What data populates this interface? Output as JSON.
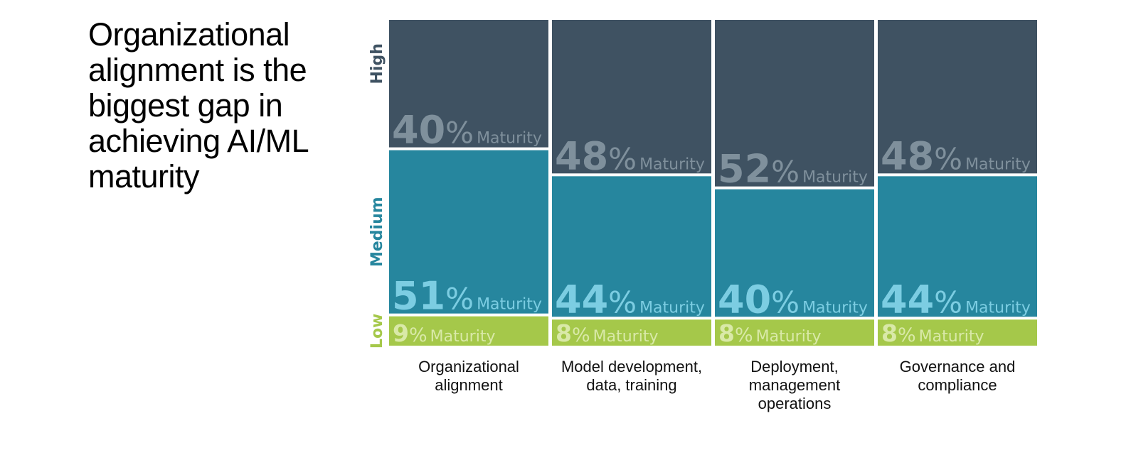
{
  "title": "Organizational alignment is the biggest gap in achieving AI/ML maturity",
  "colors": {
    "high": "#3f5262",
    "high_text": "#7f909c",
    "medium": "#26869e",
    "medium_text": "#7ccde2",
    "low": "#a5c84a",
    "low_text": "#d9e9a8",
    "label_high": "#3f5262",
    "label_medium": "#26869e",
    "label_low": "#a5c84a"
  },
  "chart_data": {
    "type": "bar",
    "stacked": true,
    "percent_symbol": "%",
    "value_suffix": "Maturity",
    "levels": [
      "Low",
      "Medium",
      "High"
    ],
    "categories": [
      [
        "Organizational",
        "alignment"
      ],
      [
        "Model development,",
        "data, training"
      ],
      [
        "Deployment,",
        "management",
        "operations"
      ],
      [
        "Governance and",
        "compliance"
      ]
    ],
    "series": [
      {
        "name": "Low",
        "values": [
          9,
          8,
          8,
          8
        ]
      },
      {
        "name": "Medium",
        "values": [
          51,
          44,
          40,
          44
        ]
      },
      {
        "name": "High",
        "values": [
          40,
          48,
          52,
          48
        ]
      }
    ]
  }
}
